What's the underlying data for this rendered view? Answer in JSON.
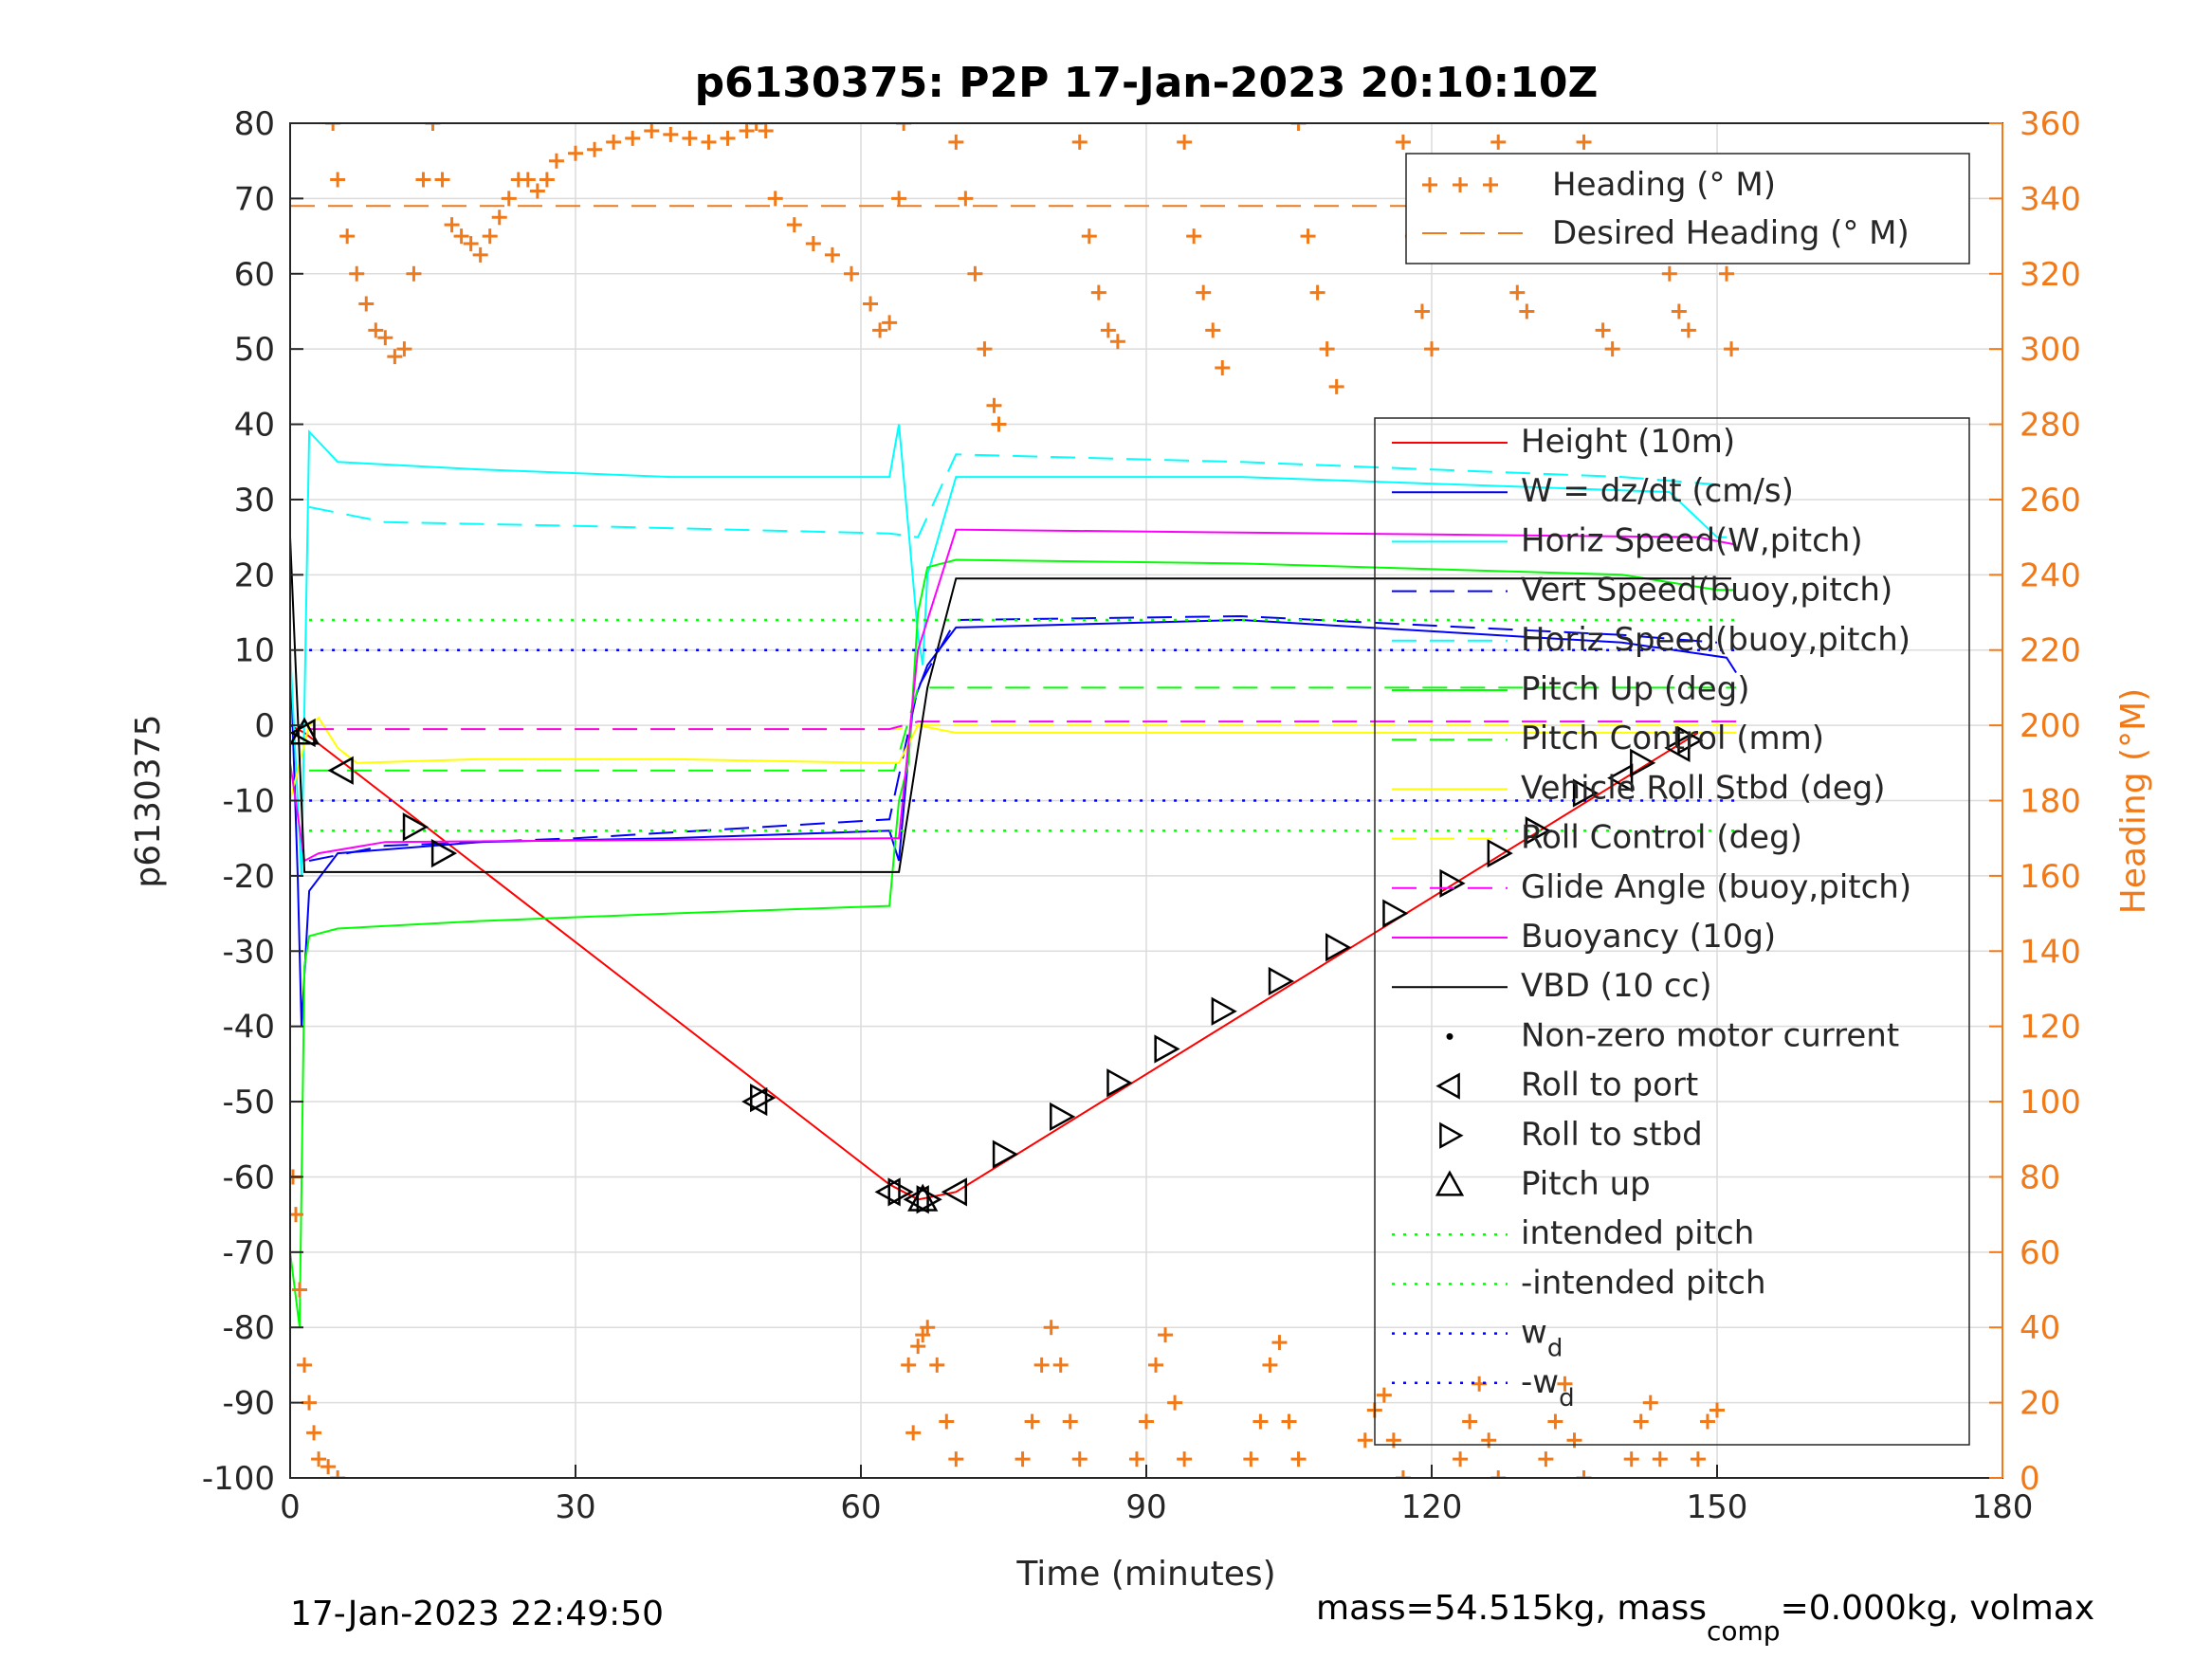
{
  "chart_data": {
    "type": "line",
    "title": "p6130375: P2P 17-Jan-2023 20:10:10Z",
    "xlabel": "Time (minutes)",
    "ylabel": "p6130375",
    "ylabel_right": "Heading (°M)",
    "xlim": [
      0,
      180
    ],
    "ylim": [
      -100,
      80
    ],
    "ylim_right": [
      0,
      360
    ],
    "xticks": [
      "0",
      "30",
      "60",
      "90",
      "120",
      "150",
      "180"
    ],
    "yticks": [
      "80",
      "70",
      "60",
      "50",
      "40",
      "30",
      "20",
      "10",
      "0",
      "-10",
      "-20",
      "-30",
      "-40",
      "-50",
      "-60",
      "-70",
      "-80",
      "-90",
      "-100"
    ],
    "yticks_right": [
      "360",
      "340",
      "320",
      "300",
      "280",
      "260",
      "240",
      "220",
      "200",
      "180",
      "160",
      "140",
      "120",
      "100",
      "80",
      "60",
      "40",
      "20",
      "0"
    ],
    "grid": true,
    "footer_left": "17-Jan-2023 22:49:50",
    "footer_right": {
      "pre": "mass=54.515kg, mass",
      "sub": "comp",
      "post": "=0.000kg, volmax"
    },
    "heading_legend": [
      "Heading (° M)",
      "Desired Heading (° M)"
    ],
    "legend_placement": "right",
    "legend": [
      {
        "label": "Height (10m)",
        "color": "#ff0000",
        "style": "solid"
      },
      {
        "label": "W = dz/dt (cm/s)",
        "color": "#0000ff",
        "style": "solid"
      },
      {
        "label": "Horiz Speed(W,pitch)",
        "color": "#00ffff",
        "style": "solid"
      },
      {
        "label": "Vert Speed(buoy,pitch)",
        "color": "#0000ff",
        "style": "dashed"
      },
      {
        "label": "Horiz Speed(buoy,pitch)",
        "color": "#00ffff",
        "style": "dashed"
      },
      {
        "label": "Pitch Up (deg)",
        "color": "#00ff00",
        "style": "solid"
      },
      {
        "label": "Pitch Control (mm)",
        "color": "#00ff00",
        "style": "dashed"
      },
      {
        "label": "Vehicle Roll Stbd (deg)",
        "color": "#ffff00",
        "style": "solid"
      },
      {
        "label": "Roll Control (deg)",
        "color": "#ffff00",
        "style": "dashed"
      },
      {
        "label": "Glide Angle (buoy,pitch)",
        "color": "#ff00ff",
        "style": "dashed"
      },
      {
        "label": "Buoyancy (10g)",
        "color": "#ff00ff",
        "style": "solid"
      },
      {
        "label": "VBD (10 cc)",
        "color": "#000000",
        "style": "solid"
      },
      {
        "label": "Non-zero motor current",
        "color": "#000000",
        "style": "dot"
      },
      {
        "label": "Roll to port",
        "color": "#000000",
        "style": "tri-left"
      },
      {
        "label": "Roll to stbd",
        "color": "#000000",
        "style": "tri-right"
      },
      {
        "label": "Pitch up",
        "color": "#000000",
        "style": "tri-up"
      },
      {
        "label": "intended pitch",
        "color": "#00ff00",
        "style": "dotted"
      },
      {
        "label": "-intended pitch",
        "color": "#00ff00",
        "style": "dotted"
      },
      {
        "label": "w",
        "sub": "d",
        "color": "#0000ff",
        "style": "dotted"
      },
      {
        "label": "-w",
        "sub": "d",
        "color": "#0000ff",
        "style": "dotted"
      }
    ],
    "series": [
      {
        "name": "Height (10m)",
        "color": "#ff0000",
        "x": [
          0,
          1.5,
          63,
          66,
          70,
          148
        ],
        "y": [
          0,
          -1,
          -61,
          -63,
          -62,
          -1
        ]
      },
      {
        "name": "W = dz/dt (cm/s)",
        "color": "#0000ff",
        "x": [
          0,
          0.8,
          1.2,
          2,
          5,
          20,
          40,
          63,
          64,
          65.5,
          67,
          70,
          100,
          140,
          151,
          152
        ],
        "y": [
          10,
          -20,
          -40,
          -22,
          -17,
          -15.5,
          -15,
          -14,
          -18,
          3,
          8,
          13,
          14,
          11,
          9,
          7
        ]
      },
      {
        "name": "Horiz Speed(W,pitch)",
        "color": "#00ffff",
        "x": [
          0,
          1.2,
          2,
          5,
          20,
          40,
          63,
          64,
          65,
          66,
          66.5,
          67,
          70,
          100,
          145,
          150,
          151
        ],
        "y": [
          10,
          -20,
          39,
          35,
          34,
          33,
          33,
          40,
          26,
          12,
          8,
          20,
          33,
          33,
          31,
          25,
          25
        ]
      },
      {
        "name": "Vert Speed(buoy,pitch)",
        "color": "#0000ff",
        "x": [
          2,
          10,
          30,
          63,
          66,
          70,
          100,
          140,
          150
        ],
        "y": [
          -18,
          -16,
          -15,
          -12.5,
          5,
          14,
          14.5,
          12,
          11
        ]
      },
      {
        "name": "Horiz Speed(buoy,pitch)",
        "color": "#00ffff",
        "x": [
          2,
          10,
          30,
          63,
          66,
          70,
          100,
          140,
          150
        ],
        "y": [
          29,
          27,
          26.5,
          25.5,
          25,
          36,
          35,
          33,
          32
        ]
      },
      {
        "name": "Pitch Up (deg)",
        "color": "#00ff00",
        "x": [
          0,
          1,
          1.5,
          2,
          5,
          20,
          40,
          63,
          64,
          65,
          66,
          67,
          70,
          100,
          140,
          150,
          152
        ],
        "y": [
          -70,
          -80,
          -32,
          -28,
          -27,
          -26,
          -25,
          -24,
          -10,
          -5,
          15,
          21,
          22,
          21.5,
          20,
          18,
          18
        ]
      },
      {
        "name": "Pitch Control (mm)",
        "color": "#00ff00",
        "x": [
          2,
          63,
          63.5,
          66,
          66.5,
          152
        ],
        "y": [
          -6,
          -6,
          -6,
          5,
          5,
          5
        ]
      },
      {
        "name": "Vehicle Roll Stbd (deg)",
        "color": "#ffff00",
        "x": [
          0,
          2,
          3,
          5,
          7,
          20,
          40,
          62,
          64,
          66,
          70,
          100,
          140,
          152
        ],
        "y": [
          -10,
          0,
          1,
          -3,
          -5,
          -4.5,
          -4.5,
          -5,
          -5,
          0,
          -1,
          -1,
          -1,
          -1
        ]
      },
      {
        "name": "Roll Control (deg)",
        "color": "#ffff00",
        "x": [
          2,
          63,
          64,
          66,
          152
        ],
        "y": [
          -0.5,
          -0.5,
          -0.5,
          0,
          0
        ]
      },
      {
        "name": "Glide Angle (buoy,pitch)",
        "color": "#ff00ff",
        "x": [
          2,
          63,
          66,
          152
        ],
        "y": [
          -0.5,
          -0.5,
          0.5,
          0.5
        ]
      },
      {
        "name": "Buoyancy (10g)",
        "color": "#ff00ff",
        "x": [
          0,
          1.5,
          3,
          10,
          63,
          64,
          66,
          70,
          148,
          152
        ],
        "y": [
          -5,
          -18,
          -17,
          -15.5,
          -15,
          -15,
          10,
          26,
          25,
          24
        ]
      },
      {
        "name": "VBD (10 cc)",
        "color": "#000000",
        "x": [
          0,
          1.5,
          63,
          64,
          67,
          70,
          150,
          151.5
        ],
        "y": [
          25,
          -19.5,
          -19.5,
          -19.5,
          5,
          19.5,
          19.5,
          19.5
        ]
      },
      {
        "name": "intended pitch",
        "color": "#00ff00",
        "x": [
          2,
          152
        ],
        "y": [
          14,
          14
        ]
      },
      {
        "name": "-intended pitch",
        "color": "#00ff00",
        "x": [
          2,
          152
        ],
        "y": [
          -14,
          -14
        ]
      },
      {
        "name": "w_d",
        "color": "#0000ff",
        "x": [
          2,
          152
        ],
        "y": [
          10,
          10
        ]
      },
      {
        "name": "-w_d",
        "color": "#0000ff",
        "x": [
          2,
          152
        ],
        "y": [
          -10,
          -10
        ]
      },
      {
        "name": "Desired Heading (° M)",
        "color": "#f07a1a",
        "axis": "right",
        "x": [
          0,
          152
        ],
        "y": [
          338,
          338
        ]
      }
    ],
    "heading_points": [
      [
        0.3,
        80
      ],
      [
        0.6,
        70
      ],
      [
        1,
        50
      ],
      [
        1.5,
        30
      ],
      [
        2,
        20
      ],
      [
        2.5,
        12
      ],
      [
        3,
        5
      ],
      [
        4,
        3
      ],
      [
        5,
        0
      ],
      [
        4.5,
        360
      ],
      [
        5,
        345
      ],
      [
        6,
        330
      ],
      [
        7,
        320
      ],
      [
        8,
        312
      ],
      [
        9,
        305
      ],
      [
        10,
        303
      ],
      [
        11,
        298
      ],
      [
        12,
        300
      ],
      [
        13,
        320
      ],
      [
        14,
        345
      ],
      [
        15,
        360
      ],
      [
        16,
        345
      ],
      [
        17,
        333
      ],
      [
        18,
        330
      ],
      [
        19,
        328
      ],
      [
        20,
        325
      ],
      [
        21,
        330
      ],
      [
        22,
        335
      ],
      [
        23,
        340
      ],
      [
        24,
        345
      ],
      [
        25,
        345
      ],
      [
        26,
        342
      ],
      [
        27,
        345
      ],
      [
        28,
        350
      ],
      [
        30,
        352
      ],
      [
        32,
        353
      ],
      [
        34,
        355
      ],
      [
        36,
        356
      ],
      [
        38,
        358
      ],
      [
        40,
        357
      ],
      [
        42,
        356
      ],
      [
        44,
        355
      ],
      [
        46,
        356
      ],
      [
        48,
        358
      ],
      [
        49,
        360
      ],
      [
        50,
        358
      ],
      [
        51,
        340
      ],
      [
        53,
        333
      ],
      [
        55,
        328
      ],
      [
        57,
        325
      ],
      [
        59,
        320
      ],
      [
        61,
        312
      ],
      [
        62,
        305
      ],
      [
        63,
        307
      ],
      [
        64,
        340
      ],
      [
        64.5,
        360
      ],
      [
        65,
        30
      ],
      [
        65.5,
        12
      ],
      [
        66,
        35
      ],
      [
        66.5,
        38
      ],
      [
        67,
        40
      ],
      [
        68,
        30
      ],
      [
        69,
        15
      ],
      [
        70,
        5
      ],
      [
        70,
        355
      ],
      [
        71,
        340
      ],
      [
        72,
        320
      ],
      [
        73,
        300
      ],
      [
        74,
        285
      ],
      [
        74.5,
        280
      ],
      [
        77,
        5
      ],
      [
        78,
        15
      ],
      [
        79,
        30
      ],
      [
        80,
        40
      ],
      [
        81,
        30
      ],
      [
        82,
        15
      ],
      [
        83,
        5
      ],
      [
        83,
        355
      ],
      [
        84,
        330
      ],
      [
        85,
        315
      ],
      [
        86,
        305
      ],
      [
        87,
        302
      ],
      [
        89,
        5
      ],
      [
        90,
        15
      ],
      [
        91,
        30
      ],
      [
        92,
        38
      ],
      [
        93,
        20
      ],
      [
        94,
        5
      ],
      [
        94,
        355
      ],
      [
        95,
        330
      ],
      [
        96,
        315
      ],
      [
        97,
        305
      ],
      [
        98,
        295
      ],
      [
        101,
        5
      ],
      [
        102,
        15
      ],
      [
        103,
        30
      ],
      [
        104,
        36
      ],
      [
        105,
        15
      ],
      [
        106,
        5
      ],
      [
        106,
        360
      ],
      [
        107,
        330
      ],
      [
        108,
        315
      ],
      [
        109,
        300
      ],
      [
        110,
        290
      ],
      [
        113,
        10
      ],
      [
        114,
        18
      ],
      [
        115,
        22
      ],
      [
        116,
        10
      ],
      [
        117,
        0
      ],
      [
        117,
        355
      ],
      [
        118,
        330
      ],
      [
        119,
        310
      ],
      [
        120,
        300
      ],
      [
        123,
        5
      ],
      [
        124,
        15
      ],
      [
        125,
        25
      ],
      [
        126,
        10
      ],
      [
        127,
        0
      ],
      [
        127,
        355
      ],
      [
        128,
        330
      ],
      [
        129,
        315
      ],
      [
        130,
        310
      ],
      [
        132,
        5
      ],
      [
        133,
        15
      ],
      [
        134,
        25
      ],
      [
        135,
        10
      ],
      [
        136,
        0
      ],
      [
        136,
        355
      ],
      [
        137,
        325
      ],
      [
        138,
        305
      ],
      [
        139,
        300
      ],
      [
        141,
        5
      ],
      [
        142,
        15
      ],
      [
        143,
        20
      ],
      [
        144,
        5
      ],
      [
        144,
        350
      ],
      [
        145,
        320
      ],
      [
        146,
        310
      ],
      [
        147,
        305
      ],
      [
        148,
        5
      ],
      [
        149,
        15
      ],
      [
        150,
        18
      ],
      [
        149,
        350
      ],
      [
        150,
        335
      ],
      [
        151,
        320
      ],
      [
        151.5,
        300
      ]
    ],
    "roll_to_port": [
      [
        1.5,
        -1
      ],
      [
        5.5,
        -6
      ],
      [
        49,
        -50
      ],
      [
        63,
        -62
      ],
      [
        66,
        -63
      ],
      [
        70,
        -62
      ],
      [
        140,
        -7
      ],
      [
        146,
        -3
      ]
    ],
    "roll_to_stbd": [
      [
        13,
        -13.5
      ],
      [
        16,
        -17
      ],
      [
        49.5,
        -49.5
      ],
      [
        64,
        -62
      ],
      [
        67,
        -63
      ],
      [
        75,
        -57
      ],
      [
        81,
        -52
      ],
      [
        87,
        -47.5
      ],
      [
        92,
        -43
      ],
      [
        98,
        -38
      ],
      [
        104,
        -34
      ],
      [
        110,
        -29.5
      ],
      [
        116,
        -25
      ],
      [
        122,
        -21
      ],
      [
        127,
        -17
      ],
      [
        131,
        -14
      ],
      [
        136,
        -9
      ],
      [
        142,
        -5
      ],
      [
        147,
        -2
      ]
    ],
    "pitch_up": [
      [
        1.5,
        -1
      ],
      [
        66.5,
        -63
      ]
    ]
  }
}
